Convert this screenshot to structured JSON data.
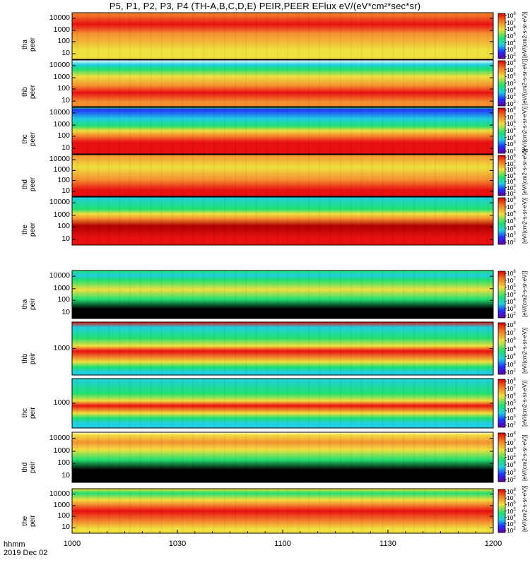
{
  "title": "P5, P1, P2, P3, P4 (TH-A,B,C,D,E) PEIR,PEER EFlux eV/(eV*cm²*sec*sr)",
  "x_axis": {
    "ticks": [
      "1000",
      "1030",
      "1100",
      "1130",
      "1200"
    ],
    "footer_line1": "hhmm",
    "footer_line2": "2019 Dec 02"
  },
  "colorbar": {
    "unit_label": "[eV/(cm2-s-sr-eV)]",
    "exponents_esa": [
      "8",
      "7",
      "6",
      "5",
      "4",
      "3",
      "2"
    ],
    "exponents_ion": [
      "8",
      "7",
      "6",
      "5",
      "4",
      "3",
      "2"
    ]
  },
  "colors": {
    "low": "#000000",
    "blue": "#2030ff",
    "cyan": "#20d0e0",
    "green": "#20e070",
    "yellow": "#f0e040",
    "orange": "#f59030",
    "red": "#e81010",
    "darkred": "#b00000"
  },
  "chart_data": [
    {
      "type": "heatmap",
      "probe": "tha",
      "species": "peer",
      "ylabel": "tha\npeer",
      "yscale": "log",
      "yticks": [
        "10000",
        "1000",
        "100",
        "10"
      ],
      "xrange": [
        "1000",
        "1200"
      ],
      "bands": [
        [
          "orange",
          0.0
        ],
        [
          "red",
          0.25
        ],
        [
          "orange",
          0.45
        ],
        [
          "yellow",
          0.8
        ]
      ]
    },
    {
      "type": "heatmap",
      "probe": "thb",
      "species": "peer",
      "ylabel": "thb\npeer",
      "yscale": "log",
      "yticks": [
        "10000",
        "1000",
        "100",
        "10"
      ],
      "xrange": [
        "1000",
        "1200"
      ],
      "bands": [
        [
          "white",
          0.0
        ],
        [
          "cyan",
          0.1
        ],
        [
          "green",
          0.2
        ],
        [
          "yellow",
          0.35
        ],
        [
          "orange",
          0.55
        ],
        [
          "red",
          0.7
        ],
        [
          "orange",
          0.9
        ]
      ]
    },
    {
      "type": "heatmap",
      "probe": "thc",
      "species": "peer",
      "ylabel": "thc\npeer",
      "yscale": "log",
      "yticks": [
        "10000",
        "1000",
        "100",
        "10"
      ],
      "xrange": [
        "1000",
        "1200"
      ],
      "bands": [
        [
          "green",
          0.0
        ],
        [
          "blue",
          0.05
        ],
        [
          "cyan",
          0.25
        ],
        [
          "green",
          0.4
        ],
        [
          "yellow",
          0.5
        ],
        [
          "orange",
          0.6
        ],
        [
          "red",
          0.75
        ]
      ]
    },
    {
      "type": "heatmap",
      "probe": "thd",
      "species": "peer",
      "ylabel": "thd\npeer",
      "yscale": "log",
      "yticks": [
        "10000",
        "1000",
        "100",
        "10"
      ],
      "xrange": [
        "1000",
        "1200"
      ],
      "bands": [
        [
          "orange",
          0.0
        ],
        [
          "yellow",
          0.3
        ],
        [
          "orange",
          0.6
        ],
        [
          "red",
          0.85
        ]
      ]
    },
    {
      "type": "heatmap",
      "probe": "the",
      "species": "peer",
      "ylabel": "the\npeer",
      "yscale": "log",
      "yticks": [
        "10000",
        "1000",
        "100",
        "10"
      ],
      "xrange": [
        "1000",
        "1200"
      ],
      "bands": [
        [
          "cyan",
          0.0
        ],
        [
          "green",
          0.25
        ],
        [
          "yellow",
          0.35
        ],
        [
          "orange",
          0.45
        ],
        [
          "darkred",
          0.6
        ],
        [
          "red",
          0.85
        ]
      ]
    },
    {
      "type": "heatmap",
      "probe": "tha",
      "species": "peir",
      "ylabel": "tha\npeir",
      "yscale": "log",
      "yticks": [
        "10000",
        "1000",
        "100",
        "10"
      ],
      "xrange": [
        "1000",
        "1200"
      ],
      "bands": [
        [
          "green",
          0.0
        ],
        [
          "cyan",
          0.1
        ],
        [
          "green",
          0.2
        ],
        [
          "yellow",
          0.4
        ],
        [
          "green",
          0.6
        ],
        [
          "black",
          0.8
        ]
      ]
    },
    {
      "type": "heatmap",
      "probe": "thb",
      "species": "peir",
      "ylabel": "thb\npeir",
      "yscale": "log",
      "yticks": [
        "1000"
      ],
      "xrange": [
        "1000",
        "1200"
      ],
      "bands": [
        [
          "red",
          0.0
        ],
        [
          "cyan",
          0.1
        ],
        [
          "green",
          0.3
        ],
        [
          "yellow",
          0.45
        ],
        [
          "red",
          0.55
        ],
        [
          "yellow",
          0.75
        ],
        [
          "green",
          0.85
        ],
        [
          "cyan",
          0.95
        ]
      ]
    },
    {
      "type": "heatmap",
      "probe": "thc",
      "species": "peir",
      "ylabel": "thc\npeir",
      "yscale": "log",
      "yticks": [
        "1000"
      ],
      "xrange": [
        "1000",
        "1200"
      ],
      "bands": [
        [
          "cyan",
          0.0
        ],
        [
          "green",
          0.3
        ],
        [
          "yellow",
          0.45
        ],
        [
          "red",
          0.55
        ],
        [
          "yellow",
          0.7
        ],
        [
          "green",
          0.8
        ],
        [
          "cyan",
          0.9
        ]
      ]
    },
    {
      "type": "heatmap",
      "probe": "thd",
      "species": "peir",
      "ylabel": "thd\npeir",
      "yscale": "log",
      "yticks": [
        "10000",
        "1000",
        "100",
        "10"
      ],
      "xrange": [
        "1000",
        "1200"
      ],
      "bands": [
        [
          "white",
          0.0
        ],
        [
          "yellow",
          0.05
        ],
        [
          "orange",
          0.2
        ],
        [
          "yellow",
          0.35
        ],
        [
          "green",
          0.55
        ],
        [
          "black",
          0.75
        ]
      ]
    },
    {
      "type": "heatmap",
      "probe": "the",
      "species": "peir",
      "ylabel": "the\npeir",
      "yscale": "log",
      "yticks": [
        "10000",
        "1000",
        "100",
        "10"
      ],
      "xrange": [
        "1000",
        "1200"
      ],
      "bands": [
        [
          "yellow",
          0.0
        ],
        [
          "green",
          0.1
        ],
        [
          "yellow",
          0.25
        ],
        [
          "orange",
          0.35
        ],
        [
          "red",
          0.5
        ],
        [
          "orange",
          0.75
        ],
        [
          "yellow",
          0.9
        ]
      ]
    }
  ]
}
